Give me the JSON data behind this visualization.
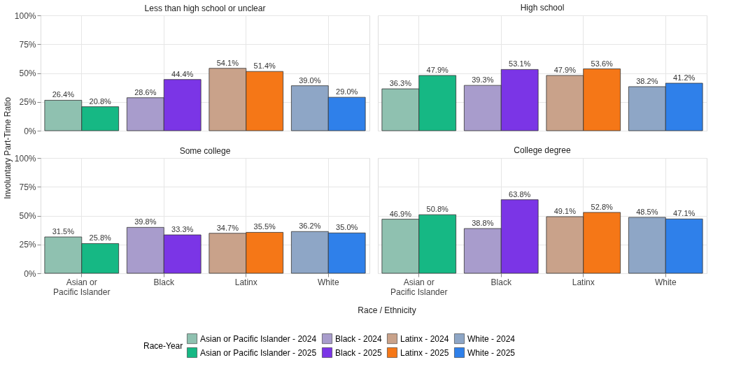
{
  "chart_data": [
    {
      "type": "bar",
      "title": "Less than high school or unclear",
      "ylabel": "Involuntary Part-Time Ratio",
      "legend_title": "Race-Year",
      "legend": "bottom",
      "grid": true,
      "tick_labels": "y",
      "categories": [
        "Asian or\nPacific Islander",
        "Black",
        "Latinx",
        "White"
      ],
      "ylim": [
        0,
        100
      ],
      "yticks": [
        {
          "value": 0,
          "label": "0%"
        },
        {
          "value": 25,
          "label": "25%"
        },
        {
          "value": 50,
          "label": "50%"
        },
        {
          "value": 75,
          "label": "75%"
        },
        {
          "value": 100,
          "label": "100%"
        }
      ],
      "series": [
        {
          "name": "Asian or Pacific Islander - 2024",
          "color": "#8fc1b0",
          "values": [
            26.4,
            null,
            null,
            null
          ],
          "value_labels": [
            "26.4%",
            null,
            null,
            null
          ]
        },
        {
          "name": "Black - 2024",
          "color": "#a89ccc",
          "values": [
            null,
            28.6,
            null,
            null
          ],
          "value_labels": [
            null,
            "28.6%",
            null,
            null
          ]
        },
        {
          "name": "Latinx - 2024",
          "color": "#c9a28a",
          "values": [
            null,
            null,
            54.1,
            null
          ],
          "value_labels": [
            null,
            null,
            "54.1%",
            null
          ]
        },
        {
          "name": "White - 2024",
          "color": "#8ea6c6",
          "values": [
            null,
            null,
            null,
            39.0
          ],
          "value_labels": [
            null,
            null,
            null,
            "39.0%"
          ]
        },
        {
          "name": "Asian or Pacific Islander - 2025",
          "color": "#16b884",
          "values": [
            20.8,
            null,
            null,
            null
          ],
          "value_labels": [
            "20.8%",
            null,
            null,
            null
          ]
        },
        {
          "name": "Black - 2025",
          "color": "#7b35e6",
          "values": [
            null,
            44.4,
            null,
            null
          ],
          "value_labels": [
            null,
            "44.4%",
            null,
            null
          ]
        },
        {
          "name": "Latinx - 2025",
          "color": "#f57717",
          "values": [
            null,
            null,
            51.4,
            null
          ],
          "value_labels": [
            null,
            null,
            "51.4%",
            null
          ]
        },
        {
          "name": "White - 2025",
          "color": "#2f80ea",
          "values": [
            null,
            null,
            null,
            29.0
          ],
          "value_labels": [
            null,
            null,
            null,
            "29.0%"
          ]
        }
      ]
    },
    {
      "type": "bar",
      "title": "High school",
      "grid": true,
      "tick_labels": false,
      "categories": [
        "Asian or\nPacific Islander",
        "Black",
        "Latinx",
        "White"
      ],
      "ylim": [
        0,
        100
      ],
      "yticks": [
        {
          "value": 0,
          "label": "0%"
        },
        {
          "value": 25,
          "label": "25%"
        },
        {
          "value": 50,
          "label": "50%"
        },
        {
          "value": 75,
          "label": "75%"
        },
        {
          "value": 100,
          "label": "100%"
        }
      ],
      "series": [
        {
          "name": "Asian or Pacific Islander - 2024",
          "color": "#8fc1b0",
          "values": [
            36.3,
            null,
            null,
            null
          ],
          "value_labels": [
            "36.3%",
            null,
            null,
            null
          ]
        },
        {
          "name": "Black - 2024",
          "color": "#a89ccc",
          "values": [
            null,
            39.3,
            null,
            null
          ],
          "value_labels": [
            null,
            "39.3%",
            null,
            null
          ]
        },
        {
          "name": "Latinx - 2024",
          "color": "#c9a28a",
          "values": [
            null,
            null,
            47.9,
            null
          ],
          "value_labels": [
            null,
            null,
            "47.9%",
            null
          ]
        },
        {
          "name": "White - 2024",
          "color": "#8ea6c6",
          "values": [
            null,
            null,
            null,
            38.2
          ],
          "value_labels": [
            null,
            null,
            null,
            "38.2%"
          ]
        },
        {
          "name": "Asian or Pacific Islander - 2025",
          "color": "#16b884",
          "values": [
            47.9,
            null,
            null,
            null
          ],
          "value_labels": [
            "47.9%",
            null,
            null,
            null
          ]
        },
        {
          "name": "Black - 2025",
          "color": "#7b35e6",
          "values": [
            null,
            53.1,
            null,
            null
          ],
          "value_labels": [
            null,
            "53.1%",
            null,
            null
          ]
        },
        {
          "name": "Latinx - 2025",
          "color": "#f57717",
          "values": [
            null,
            null,
            53.6,
            null
          ],
          "value_labels": [
            null,
            null,
            "53.6%",
            null
          ]
        },
        {
          "name": "White - 2025",
          "color": "#2f80ea",
          "values": [
            null,
            null,
            null,
            41.2
          ],
          "value_labels": [
            null,
            null,
            null,
            "41.2%"
          ]
        }
      ]
    },
    {
      "type": "bar",
      "title": "Some college",
      "xlabel": "Race / Ethnicity",
      "grid": true,
      "categories": [
        "Asian or\nPacific Islander",
        "Black",
        "Latinx",
        "White"
      ],
      "ylim": [
        0,
        100
      ],
      "yticks": [
        {
          "value": 0,
          "label": "0%"
        },
        {
          "value": 25,
          "label": "25%"
        },
        {
          "value": 50,
          "label": "50%"
        },
        {
          "value": 75,
          "label": "75%"
        },
        {
          "value": 100,
          "label": "100%"
        }
      ],
      "series": [
        {
          "name": "Asian or Pacific Islander - 2024",
          "color": "#8fc1b0",
          "values": [
            31.5,
            null,
            null,
            null
          ],
          "value_labels": [
            "31.5%",
            null,
            null,
            null
          ]
        },
        {
          "name": "Black - 2024",
          "color": "#a89ccc",
          "values": [
            null,
            39.8,
            null,
            null
          ],
          "value_labels": [
            null,
            "39.8%",
            null,
            null
          ]
        },
        {
          "name": "Latinx - 2024",
          "color": "#c9a28a",
          "values": [
            null,
            null,
            34.7,
            null
          ],
          "value_labels": [
            null,
            null,
            "34.7%",
            null
          ]
        },
        {
          "name": "White - 2024",
          "color": "#8ea6c6",
          "values": [
            null,
            null,
            null,
            36.2
          ],
          "value_labels": [
            null,
            null,
            null,
            "36.2%"
          ]
        },
        {
          "name": "Asian or Pacific Islander - 2025",
          "color": "#16b884",
          "values": [
            25.8,
            null,
            null,
            null
          ],
          "value_labels": [
            "25.8%",
            null,
            null,
            null
          ]
        },
        {
          "name": "Black - 2025",
          "color": "#7b35e6",
          "values": [
            null,
            33.3,
            null,
            null
          ],
          "value_labels": [
            null,
            "33.3%",
            null,
            null
          ]
        },
        {
          "name": "Latinx - 2025",
          "color": "#f57717",
          "values": [
            null,
            null,
            35.5,
            null
          ],
          "value_labels": [
            null,
            null,
            "35.5%",
            null
          ]
        },
        {
          "name": "White - 2025",
          "color": "#2f80ea",
          "values": [
            null,
            null,
            null,
            35.0
          ],
          "value_labels": [
            null,
            null,
            null,
            "35.0%"
          ]
        }
      ]
    },
    {
      "type": "bar",
      "title": "College degree",
      "grid": true,
      "tick_labels": "x",
      "categories": [
        "Asian or\nPacific Islander",
        "Black",
        "Latinx",
        "White"
      ],
      "ylim": [
        0,
        100
      ],
      "yticks": [
        {
          "value": 0,
          "label": "0%"
        },
        {
          "value": 25,
          "label": "25%"
        },
        {
          "value": 50,
          "label": "50%"
        },
        {
          "value": 75,
          "label": "75%"
        },
        {
          "value": 100,
          "label": "100%"
        }
      ],
      "series": [
        {
          "name": "Asian or Pacific Islander - 2024",
          "color": "#8fc1b0",
          "values": [
            46.9,
            null,
            null,
            null
          ],
          "value_labels": [
            "46.9%",
            null,
            null,
            null
          ]
        },
        {
          "name": "Black - 2024",
          "color": "#a89ccc",
          "values": [
            null,
            38.8,
            null,
            null
          ],
          "value_labels": [
            null,
            "38.8%",
            null,
            null
          ]
        },
        {
          "name": "Latinx - 2024",
          "color": "#c9a28a",
          "values": [
            null,
            null,
            49.1,
            null
          ],
          "value_labels": [
            null,
            null,
            "49.1%",
            null
          ]
        },
        {
          "name": "White - 2024",
          "color": "#8ea6c6",
          "values": [
            null,
            null,
            null,
            48.5
          ],
          "value_labels": [
            null,
            null,
            null,
            "48.5%"
          ]
        },
        {
          "name": "Asian or Pacific Islander - 2025",
          "color": "#16b884",
          "values": [
            50.8,
            null,
            null,
            null
          ],
          "value_labels": [
            "50.8%",
            null,
            null,
            null
          ]
        },
        {
          "name": "Black - 2025",
          "color": "#7b35e6",
          "values": [
            null,
            63.8,
            null,
            null
          ],
          "value_labels": [
            null,
            "63.8%",
            null,
            null
          ]
        },
        {
          "name": "Latinx - 2025",
          "color": "#f57717",
          "values": [
            null,
            null,
            52.8,
            null
          ],
          "value_labels": [
            null,
            null,
            "52.8%",
            null
          ]
        },
        {
          "name": "White - 2025",
          "color": "#2f80ea",
          "values": [
            null,
            null,
            null,
            47.1
          ],
          "value_labels": [
            null,
            null,
            null,
            "47.1%"
          ]
        }
      ]
    }
  ]
}
